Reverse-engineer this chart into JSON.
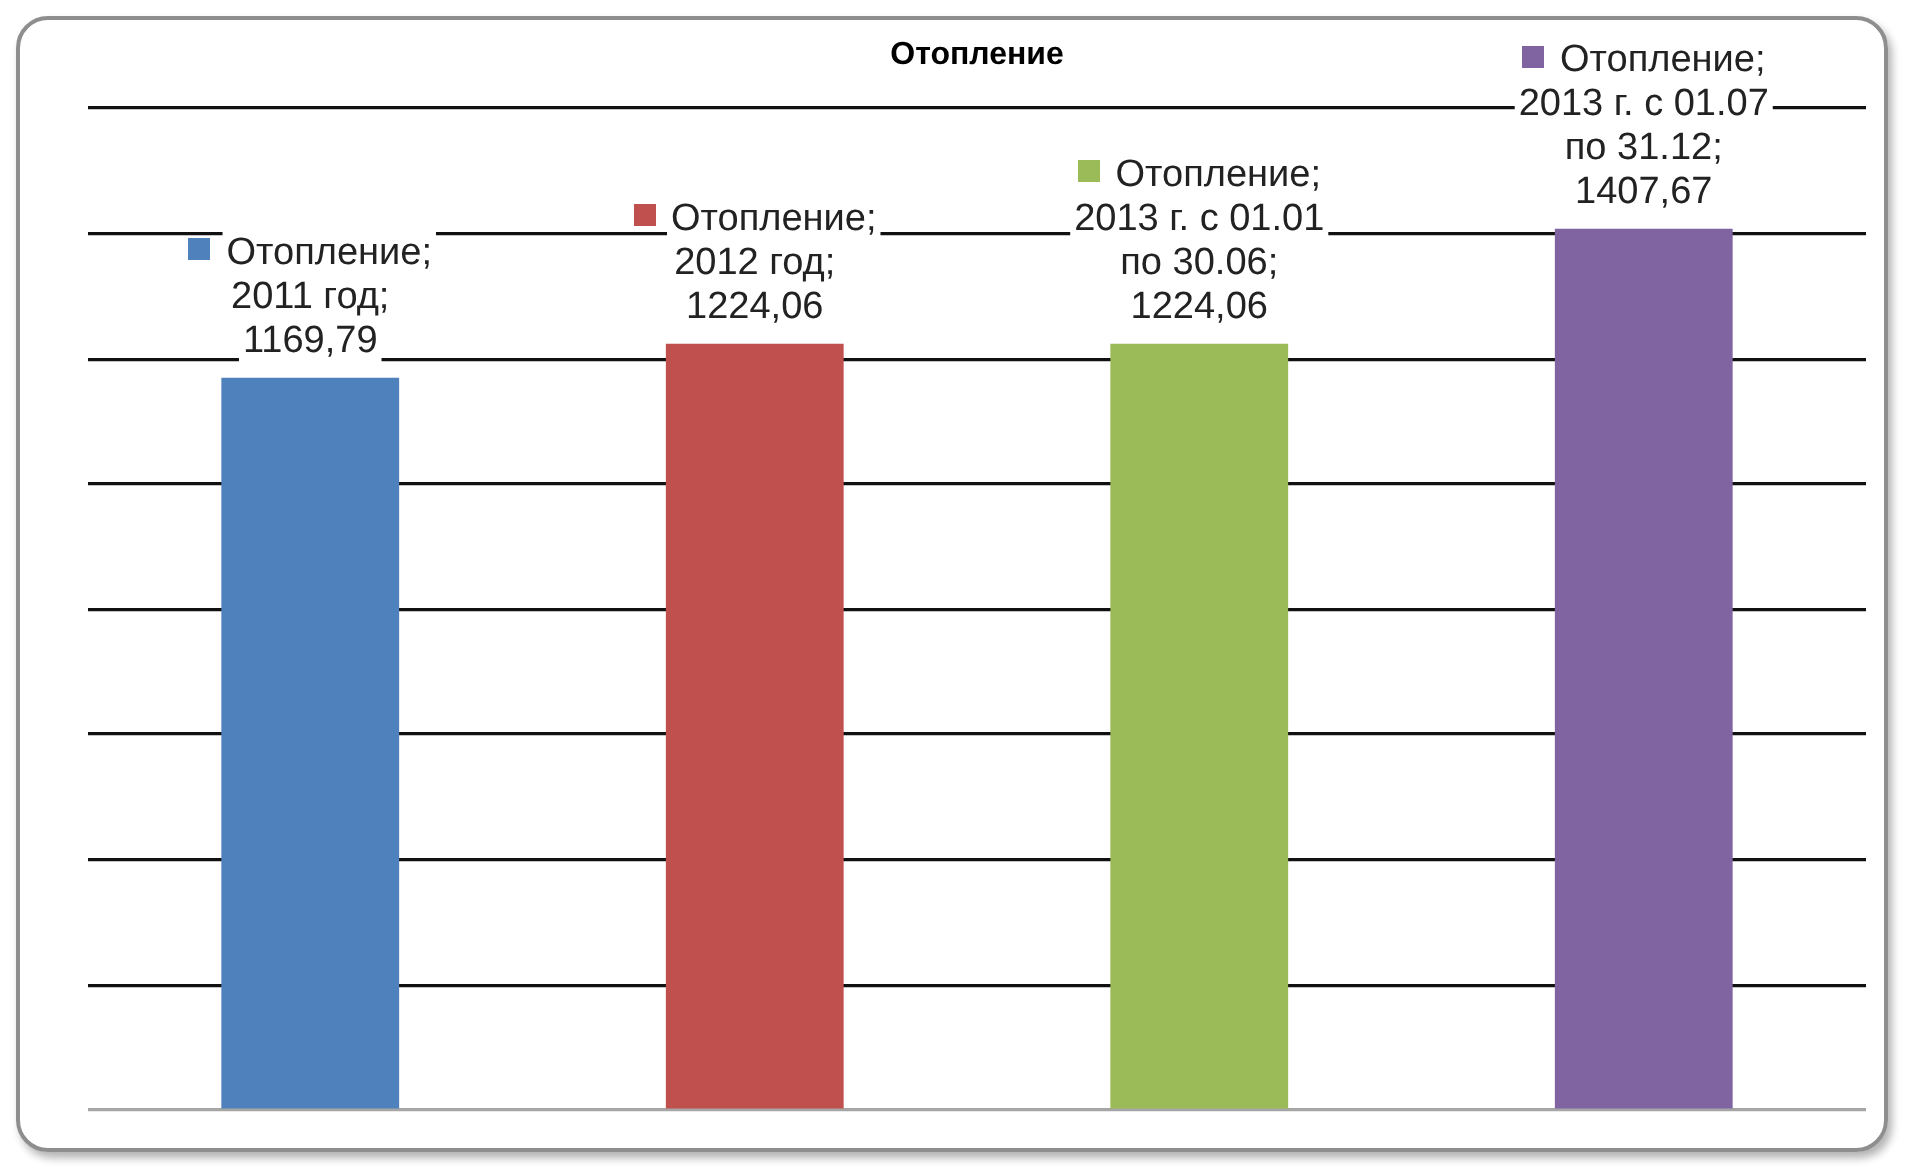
{
  "chart_data": {
    "type": "bar",
    "title": "Отопление",
    "categories": [
      null,
      null,
      null,
      null
    ],
    "values": [
      1169.79,
      1224.06,
      1224.06,
      1407.67
    ],
    "colors": [
      "#4f81bd",
      "#c0504d",
      "#9bbb59",
      "#8064a2"
    ],
    "value_labels": [
      "Отопление; 2011 год; 1169,79",
      "Отопление; 2012 год; 1224,06",
      "Отопление; 2013 г. с 01.01 по 30.06; 1224,06",
      "Отопление; 2013 г. с 01.07 по 31.12; 1407,67"
    ],
    "ylim": [
      0,
      1600
    ],
    "yticks": [
      {
        "value": 0,
        "label": null
      },
      {
        "value": 200,
        "label": null
      },
      {
        "value": 400,
        "label": null
      },
      {
        "value": 600,
        "label": null
      },
      {
        "value": 800,
        "label": null
      },
      {
        "value": 1000,
        "label": null
      },
      {
        "value": 1200,
        "label": null
      },
      {
        "value": 1400,
        "label": null
      },
      {
        "value": 1600,
        "label": null
      }
    ],
    "grid": "y",
    "tick_labels": false
  }
}
